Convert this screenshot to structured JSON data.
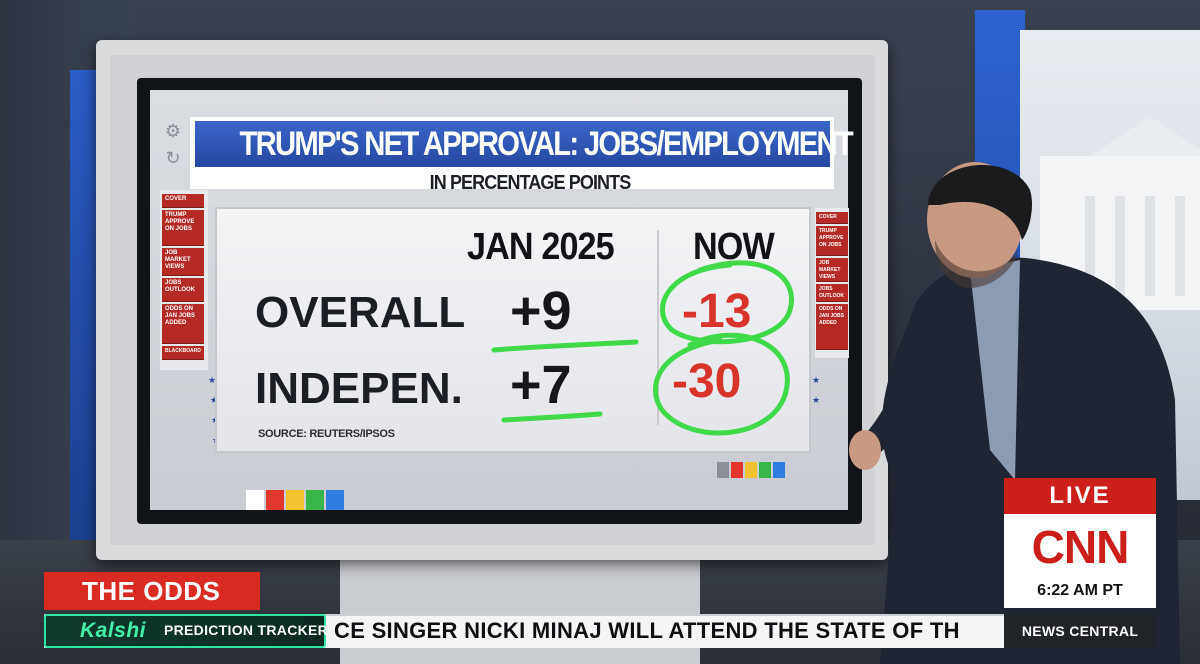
{
  "graphic": {
    "title": "TRUMP'S NET APPROVAL: JOBS/EMPLOYMENT",
    "subtitle": "IN PERCENTAGE POINTS",
    "columns": [
      "JAN 2025",
      "NOW"
    ],
    "rows": [
      {
        "label": "OVERALL",
        "jan_2025": "+9",
        "now": "-13"
      },
      {
        "label": "INDEPEN.",
        "jan_2025": "+7",
        "now": "-30"
      }
    ],
    "source": "SOURCE: REUTERS/IPSOS",
    "left_menu": [
      "COVER",
      "TRUMP APPROVE ON JOBS",
      "JOB MARKET VIEWS",
      "JOBS OUTLOOK",
      "ODDS ON JAN JOBS ADDED",
      "BLACKBOARD"
    ],
    "right_menu": [
      "COVER",
      "TRUMP APPROVE ON JOBS",
      "JOB MARKET VIEWS",
      "JOBS OUTLOOK",
      "ODDS ON JAN JOBS ADDED"
    ],
    "swatch_colors": [
      "#ffffff",
      "#e3362d",
      "#f2c230",
      "#39b54a",
      "#2f7de1",
      "#8a8f96"
    ],
    "ink_color": "#3fd94a",
    "accent_blue": "#2f5bbf",
    "accent_red": "#d8342b"
  },
  "lower_third": {
    "segment": "THE ODDS",
    "brand": "Kalshi",
    "brand_suffix": "PREDICTION TRACKER",
    "ticker": "CE SINGER NICKI MINAJ WILL ATTEND THE STATE OF TH",
    "live": "LIVE",
    "network": "CNN",
    "time": "6:22 AM PT",
    "show": "NEWS CENTRAL",
    "colors": {
      "red": "#d92b22",
      "kalshi_green": "#43f0a6",
      "cnn_red": "#cc1f1a"
    }
  }
}
